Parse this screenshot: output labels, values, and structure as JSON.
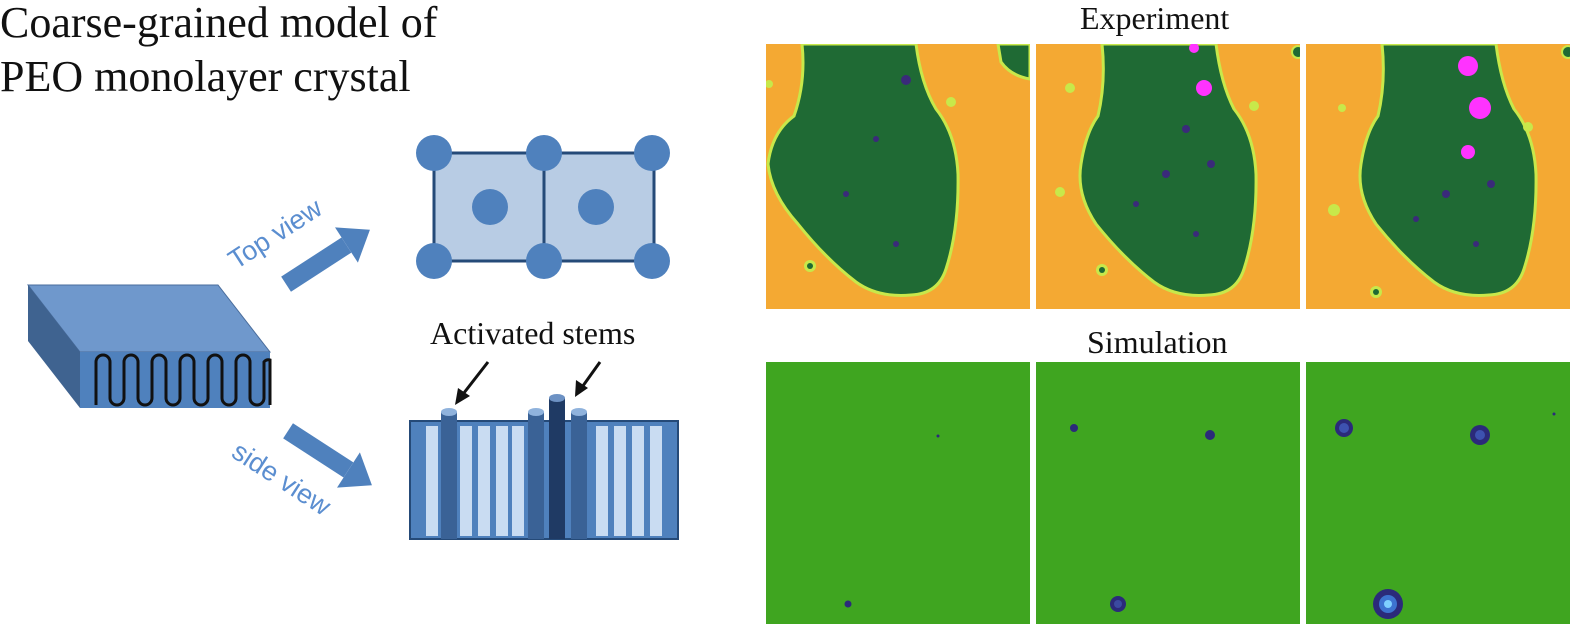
{
  "title": {
    "line1": "Coarse-grained model of",
    "line2": "PEO monolayer crystal"
  },
  "labels": {
    "top_view": "Top view",
    "side_view": "side view",
    "activated_stems": "Activated stems"
  },
  "panels": {
    "experiment": "Experiment",
    "simulation": "Simulation"
  },
  "colors": {
    "lattice_blue": "#4f81bd",
    "cell_fill": "#b8cce4",
    "arrow_text": "#5b8ed0",
    "exp_substrate": "#f4a933",
    "exp_crystal": "#1f6a34",
    "exp_rim": "#c8e84a",
    "exp_hole": "#3a2a7a",
    "exp_magenta": "#ff33ff",
    "sim_background": "#3fa520",
    "sim_hole": "#2b2a7a"
  }
}
